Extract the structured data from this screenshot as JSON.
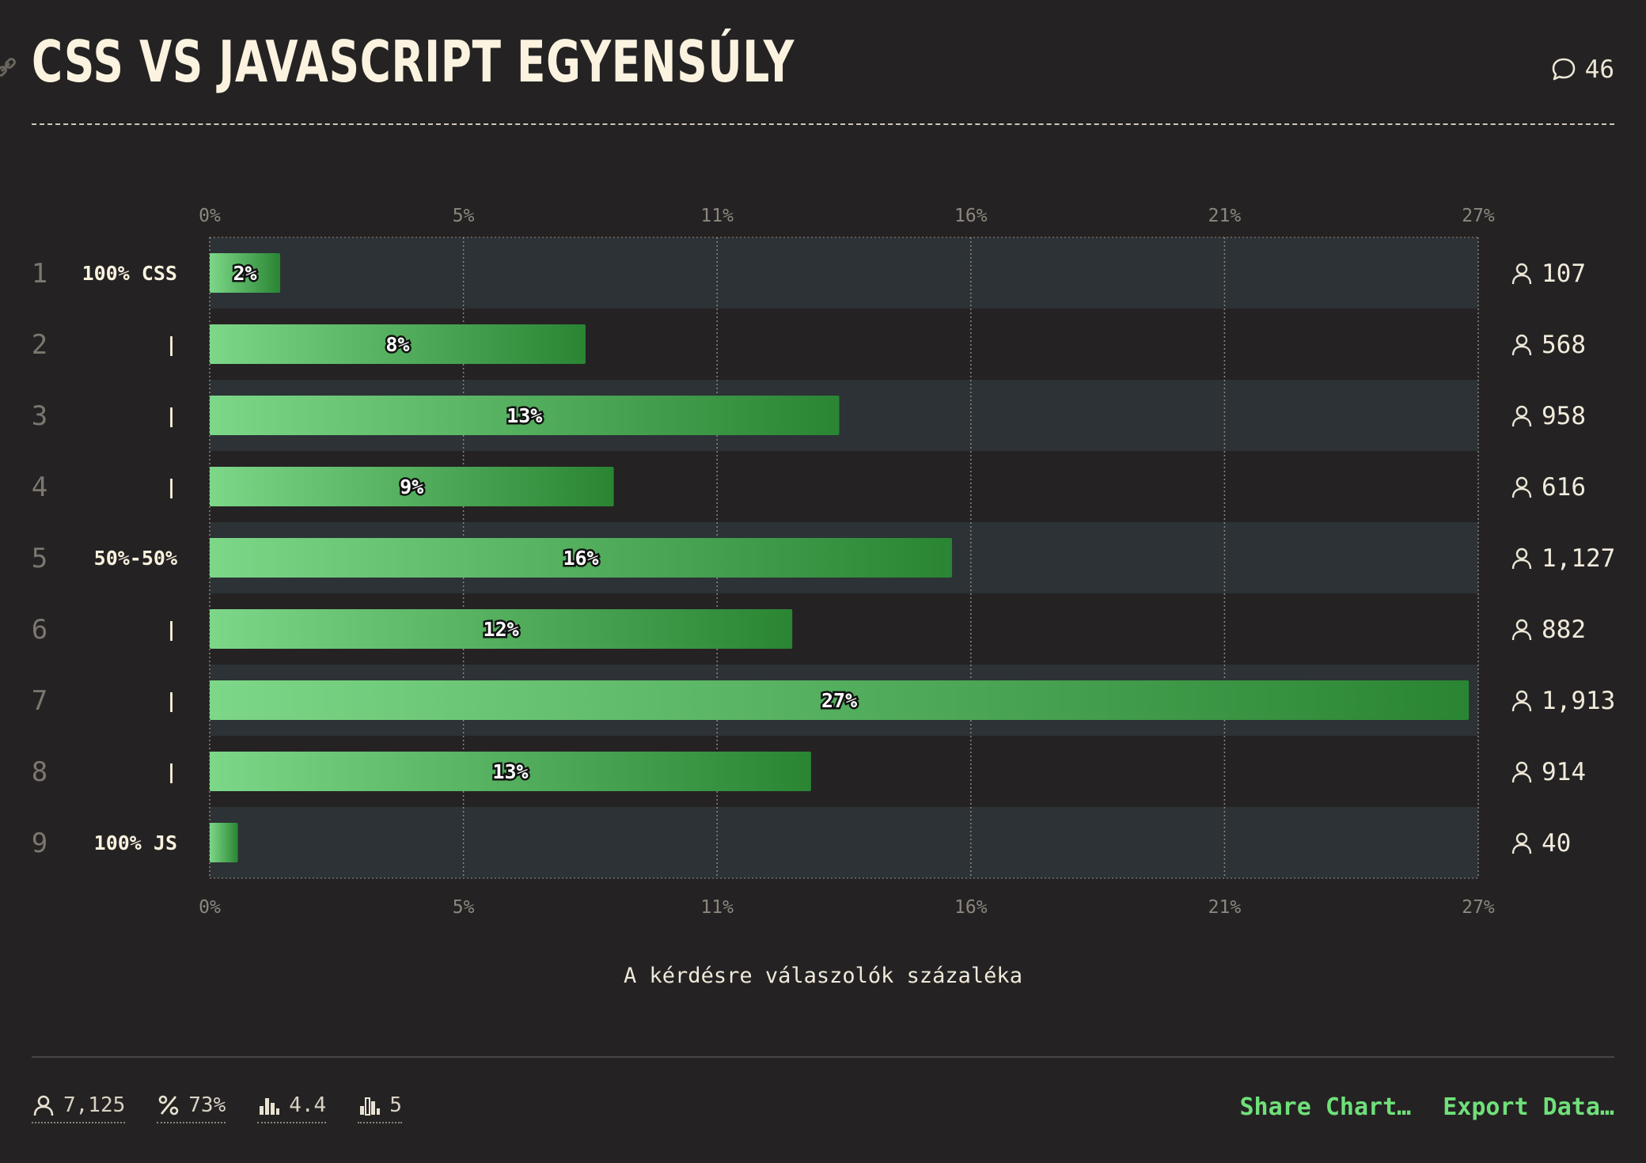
{
  "header": {
    "title": "CSS VS JAVASCRIPT EGYENSÚLY",
    "comment_count": "46",
    "comment_icon": "speech-bubble-icon",
    "link_icon": "link-icon"
  },
  "chart_data": {
    "type": "bar",
    "orientation": "horizontal",
    "xlim": [
      0,
      27
    ],
    "x_ticks": [
      "0%",
      "5%",
      "11%",
      "16%",
      "21%",
      "27%"
    ],
    "xlabel": "A kérdésre válaszolók százaléka",
    "ranks": [
      "1",
      "2",
      "3",
      "4",
      "5",
      "6",
      "7",
      "8",
      "9"
    ],
    "categories": [
      "100% CSS",
      "|",
      "|",
      "|",
      "50%-50%",
      "|",
      "|",
      "|",
      "100% JS"
    ],
    "values": [
      1.5,
      8,
      13.4,
      8.6,
      15.8,
      12.4,
      26.8,
      12.8,
      0.6
    ],
    "value_labels": [
      "2%",
      "8%",
      "13%",
      "9%",
      "16%",
      "12%",
      "27%",
      "13%",
      ""
    ],
    "counts": [
      "107",
      "568",
      "958",
      "616",
      "1,127",
      "882",
      "1,913",
      "914",
      "40"
    ],
    "grid": true,
    "colors": {
      "bar_light": "#7cd888",
      "bar_dark": "#2a8533",
      "band": "#2c3236",
      "background": "#252223"
    }
  },
  "footer": {
    "stats": [
      {
        "icon": "user-icon",
        "value": "7,125"
      },
      {
        "icon": "percent-icon",
        "value": "73%"
      },
      {
        "icon": "bar-chart-icon",
        "value": "4.4"
      },
      {
        "icon": "bar-chart-median-icon",
        "value": "5"
      }
    ],
    "share_label": "Share Chart…",
    "export_label": "Export Data…"
  }
}
